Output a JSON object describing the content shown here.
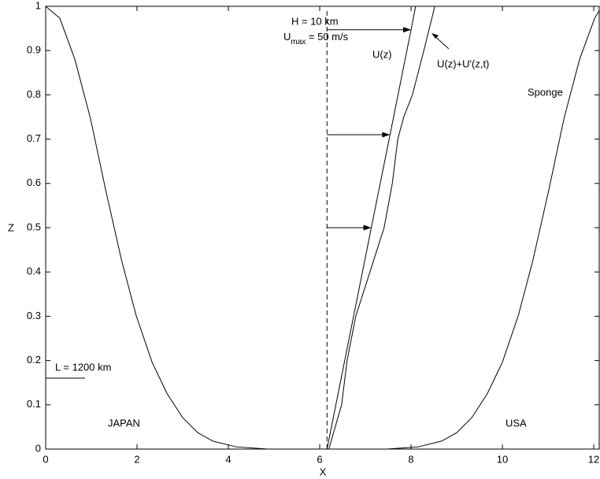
{
  "chart_data": {
    "type": "line",
    "x_label": "X",
    "y_label": "Z",
    "xlim": [
      0,
      12.12
    ],
    "ylim": [
      0,
      1
    ],
    "xticks": [
      0,
      2,
      4,
      6,
      8,
      10,
      12
    ],
    "yticks": [
      0,
      0.1,
      0.2,
      0.3,
      0.4,
      0.5,
      0.6,
      0.7,
      0.8,
      0.9,
      1
    ],
    "color": "#000000",
    "series": [
      {
        "name": "Sponge",
        "x": [
          0,
          0.31,
          0.64,
          0.98,
          1.31,
          1.66,
          1.98,
          2.33,
          2.66,
          3.0,
          3.33,
          3.66,
          4.17,
          4.86,
          6.2
        ],
        "values": [
          1,
          0.973,
          0.88,
          0.747,
          0.587,
          0.427,
          0.302,
          0.196,
          0.125,
          0.071,
          0.037,
          0.018,
          0.005,
          0,
          0
        ]
      },
      {
        "name": "Sponge",
        "x": [
          7.47,
          8.16,
          8.67,
          9.0,
          9.33,
          9.67,
          10.0,
          10.35,
          10.67,
          11.02,
          11.35,
          11.69,
          12.02,
          12.12
        ],
        "values": [
          0,
          0.005,
          0.018,
          0.037,
          0.071,
          0.125,
          0.196,
          0.302,
          0.427,
          0.587,
          0.747,
          0.88,
          0.973,
          0.99
        ]
      },
      {
        "name": "U(z)",
        "x": [
          6.16,
          7.13,
          7.54,
          8.0,
          8.1
        ],
        "values": [
          0,
          0.5,
          0.71,
          0.947,
          1
        ]
      },
      {
        "name": "U(z)+U'(z,t)",
        "x": [
          6.2,
          6.48,
          6.6,
          6.79,
          7.1,
          7.41,
          7.59,
          7.71,
          7.84,
          8.03,
          8.28,
          8.52
        ],
        "values": [
          0,
          0.1,
          0.2,
          0.3,
          0.4,
          0.5,
          0.6,
          0.7,
          0.75,
          0.8,
          0.9,
          1
        ]
      }
    ],
    "annotations": {
      "height": "H = 10 km",
      "umax": {
        "base": "U",
        "subscript": "max",
        "text": " = 50 m/s"
      },
      "length": "L = 1200 km",
      "japan": "JAPAN",
      "usa": "USA"
    }
  }
}
